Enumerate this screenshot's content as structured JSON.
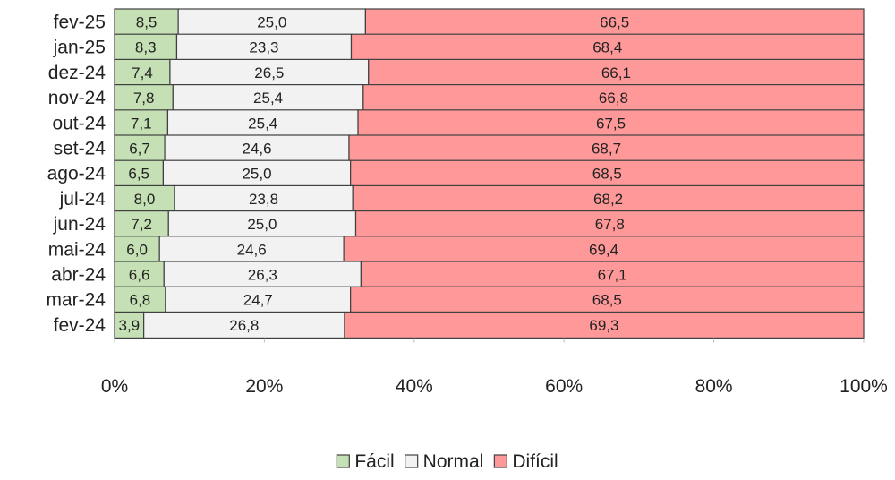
{
  "chart_data": {
    "type": "bar",
    "orientation": "horizontal",
    "stacked": "percent",
    "categories": [
      "fev-25",
      "jan-25",
      "dez-24",
      "nov-24",
      "out-24",
      "set-24",
      "ago-24",
      "jul-24",
      "jun-24",
      "mai-24",
      "abr-24",
      "mar-24",
      "fev-24"
    ],
    "series": [
      {
        "name": "Fácil",
        "color": "#c5e0b4",
        "values": [
          8.5,
          8.3,
          7.4,
          7.8,
          7.1,
          6.7,
          6.5,
          8.0,
          7.2,
          6.0,
          6.6,
          6.8,
          3.9
        ],
        "labels": [
          "8,5",
          "8,3",
          "7,4",
          "7,8",
          "7,1",
          "6,7",
          "6,5",
          "8,0",
          "7,2",
          "6,0",
          "6,6",
          "6,8",
          "3,9"
        ]
      },
      {
        "name": "Normal",
        "color": "#f2f2f2",
        "values": [
          25.0,
          23.3,
          26.5,
          25.4,
          25.4,
          24.6,
          25.0,
          23.8,
          25.0,
          24.6,
          26.3,
          24.7,
          26.8
        ],
        "labels": [
          "25,0",
          "23,3",
          "26,5",
          "25,4",
          "25,4",
          "24,6",
          "25,0",
          "23,8",
          "25,0",
          "24,6",
          "26,3",
          "24,7",
          "26,8"
        ]
      },
      {
        "name": "Difícil",
        "color": "#ff9999",
        "values": [
          66.5,
          68.4,
          66.1,
          66.8,
          67.5,
          68.7,
          68.5,
          68.2,
          67.8,
          69.4,
          67.1,
          68.5,
          69.3
        ],
        "labels": [
          "66,5",
          "68,4",
          "66,1",
          "66,8",
          "67,5",
          "68,7",
          "68,5",
          "68,2",
          "67,8",
          "69,4",
          "67,1",
          "68,5",
          "69,3"
        ]
      }
    ],
    "xlim": [
      0,
      100
    ],
    "xticks": [
      0,
      20,
      40,
      60,
      80,
      100
    ],
    "xtick_labels": [
      "0%",
      "20%",
      "40%",
      "60%",
      "80%",
      "100%"
    ],
    "grid": false,
    "legend_position": "bottom",
    "bar_border_color": "#404040"
  }
}
